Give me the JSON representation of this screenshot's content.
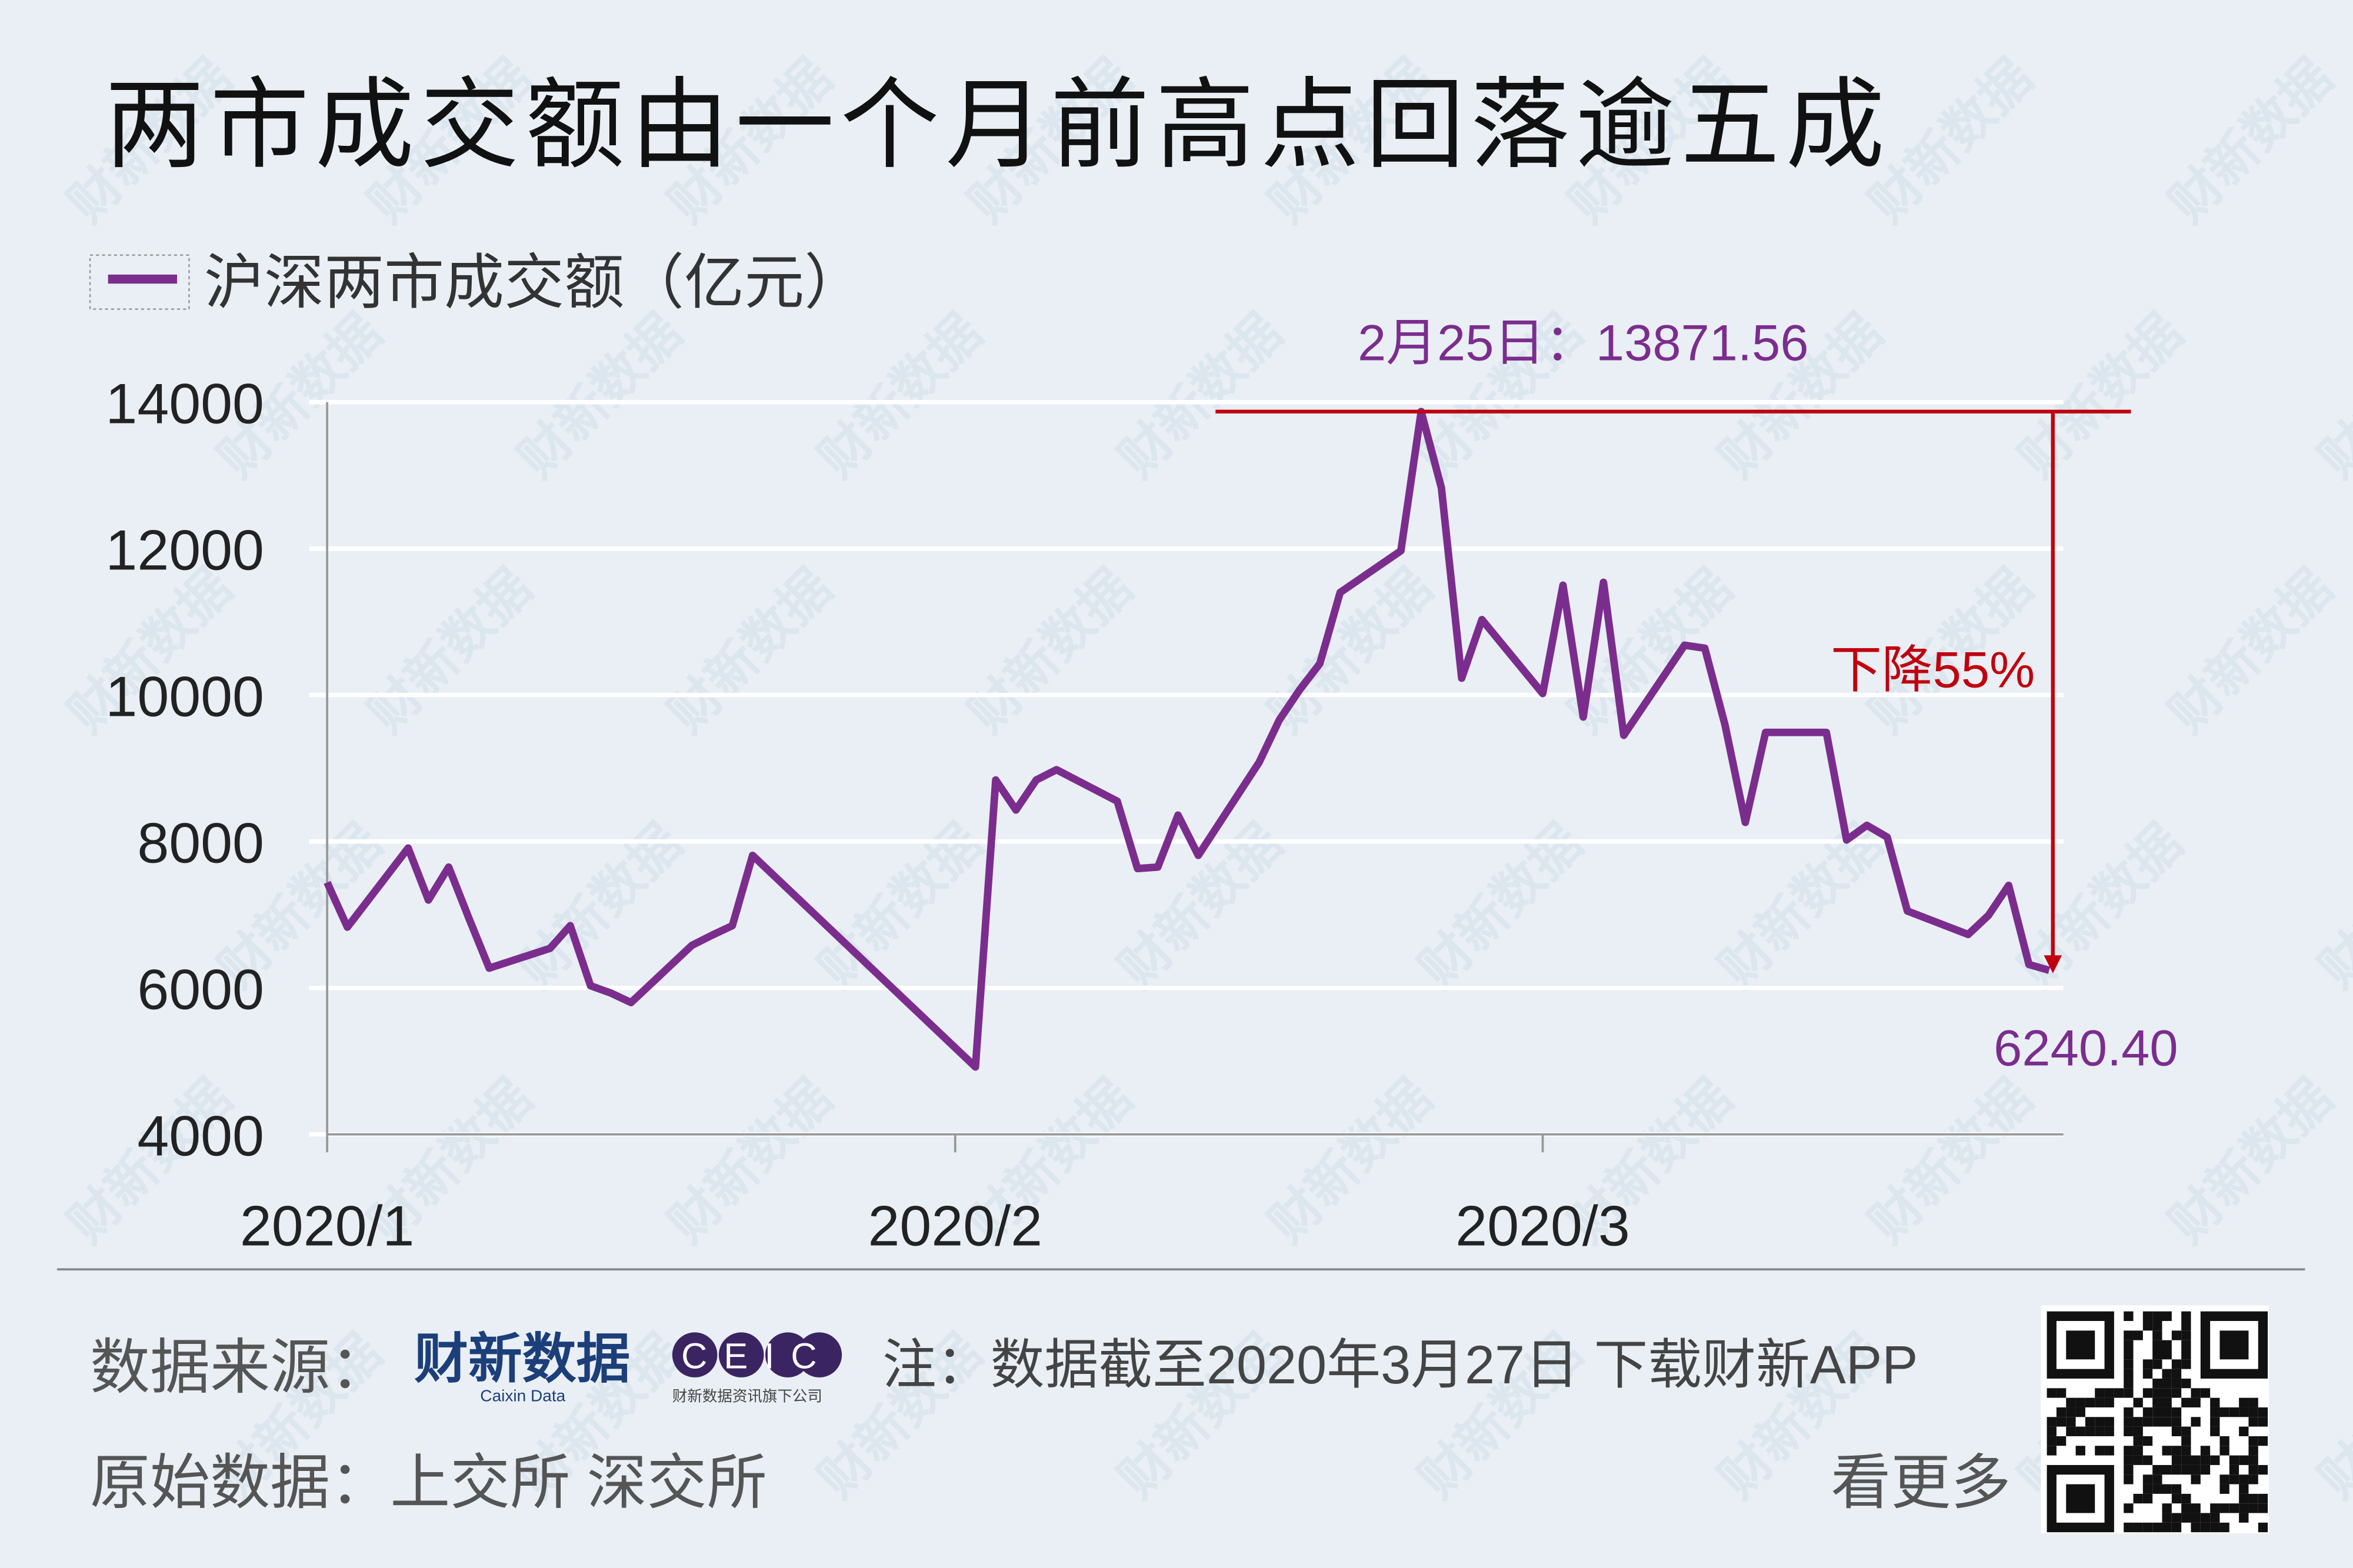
{
  "chart_data": {
    "type": "line",
    "title": "两市成交额由一个月前高点回落逾五成",
    "x": [
      2,
      3,
      6,
      7,
      8,
      9,
      10,
      13,
      14,
      15,
      16,
      17,
      20,
      21,
      22,
      23,
      34,
      35,
      36,
      37,
      38,
      41,
      42,
      43,
      44,
      45,
      48,
      49,
      50,
      51,
      52,
      55,
      56,
      57,
      58,
      59,
      62,
      63,
      64,
      65,
      66,
      69,
      70,
      71,
      72,
      73,
      76,
      77,
      78,
      79,
      80,
      83,
      84,
      85,
      86,
      87
    ],
    "series": [
      {
        "name": "沪深两市成交额（亿元）",
        "color": "#7b2d8e",
        "values": [
          7440,
          6830,
          7910,
          7200,
          7650,
          6950,
          6270,
          6540,
          6850,
          6030,
          5930,
          5800,
          6580,
          6720,
          6850,
          7810,
          4920,
          8840,
          8430,
          8840,
          8980,
          8550,
          7630,
          7650,
          8360,
          7810,
          9080,
          9660,
          10070,
          10430,
          11400,
          11970,
          13871.56,
          12830,
          10230,
          11030,
          10020,
          11500,
          9700,
          11540,
          9450,
          10680,
          10640,
          9590,
          8260,
          9490,
          9490,
          8020,
          8220,
          8060,
          7050,
          6730,
          6990,
          7400,
          6320,
          6240.4
        ]
      }
    ],
    "xlim": [
      2,
      87.7
    ],
    "xticks": [
      {
        "value": 2,
        "label": "2020/1"
      },
      {
        "value": 33,
        "label": "2020/2"
      },
      {
        "value": 62,
        "label": "2020/3"
      }
    ],
    "ylim": [
      4000,
      14000
    ],
    "yticks": [
      4000,
      6000,
      8000,
      10000,
      12000,
      14000
    ],
    "grid": true,
    "annotation_color": "#c0000f",
    "annotations": [
      "2月25日：13871.56",
      "下降55%",
      "6240.40"
    ]
  },
  "footer": {
    "source_label": "数据来源：",
    "logo": "财新数据",
    "logo_sub": "Caixin Data",
    "ceic": "CEIC",
    "ceic_sub": "财新数据资讯旗下公司",
    "note": "注：数据截至2020年3月27日 下载财新APP",
    "raw": "原始数据：上交所 深交所",
    "more": "看更多"
  },
  "watermark": "财新数据"
}
